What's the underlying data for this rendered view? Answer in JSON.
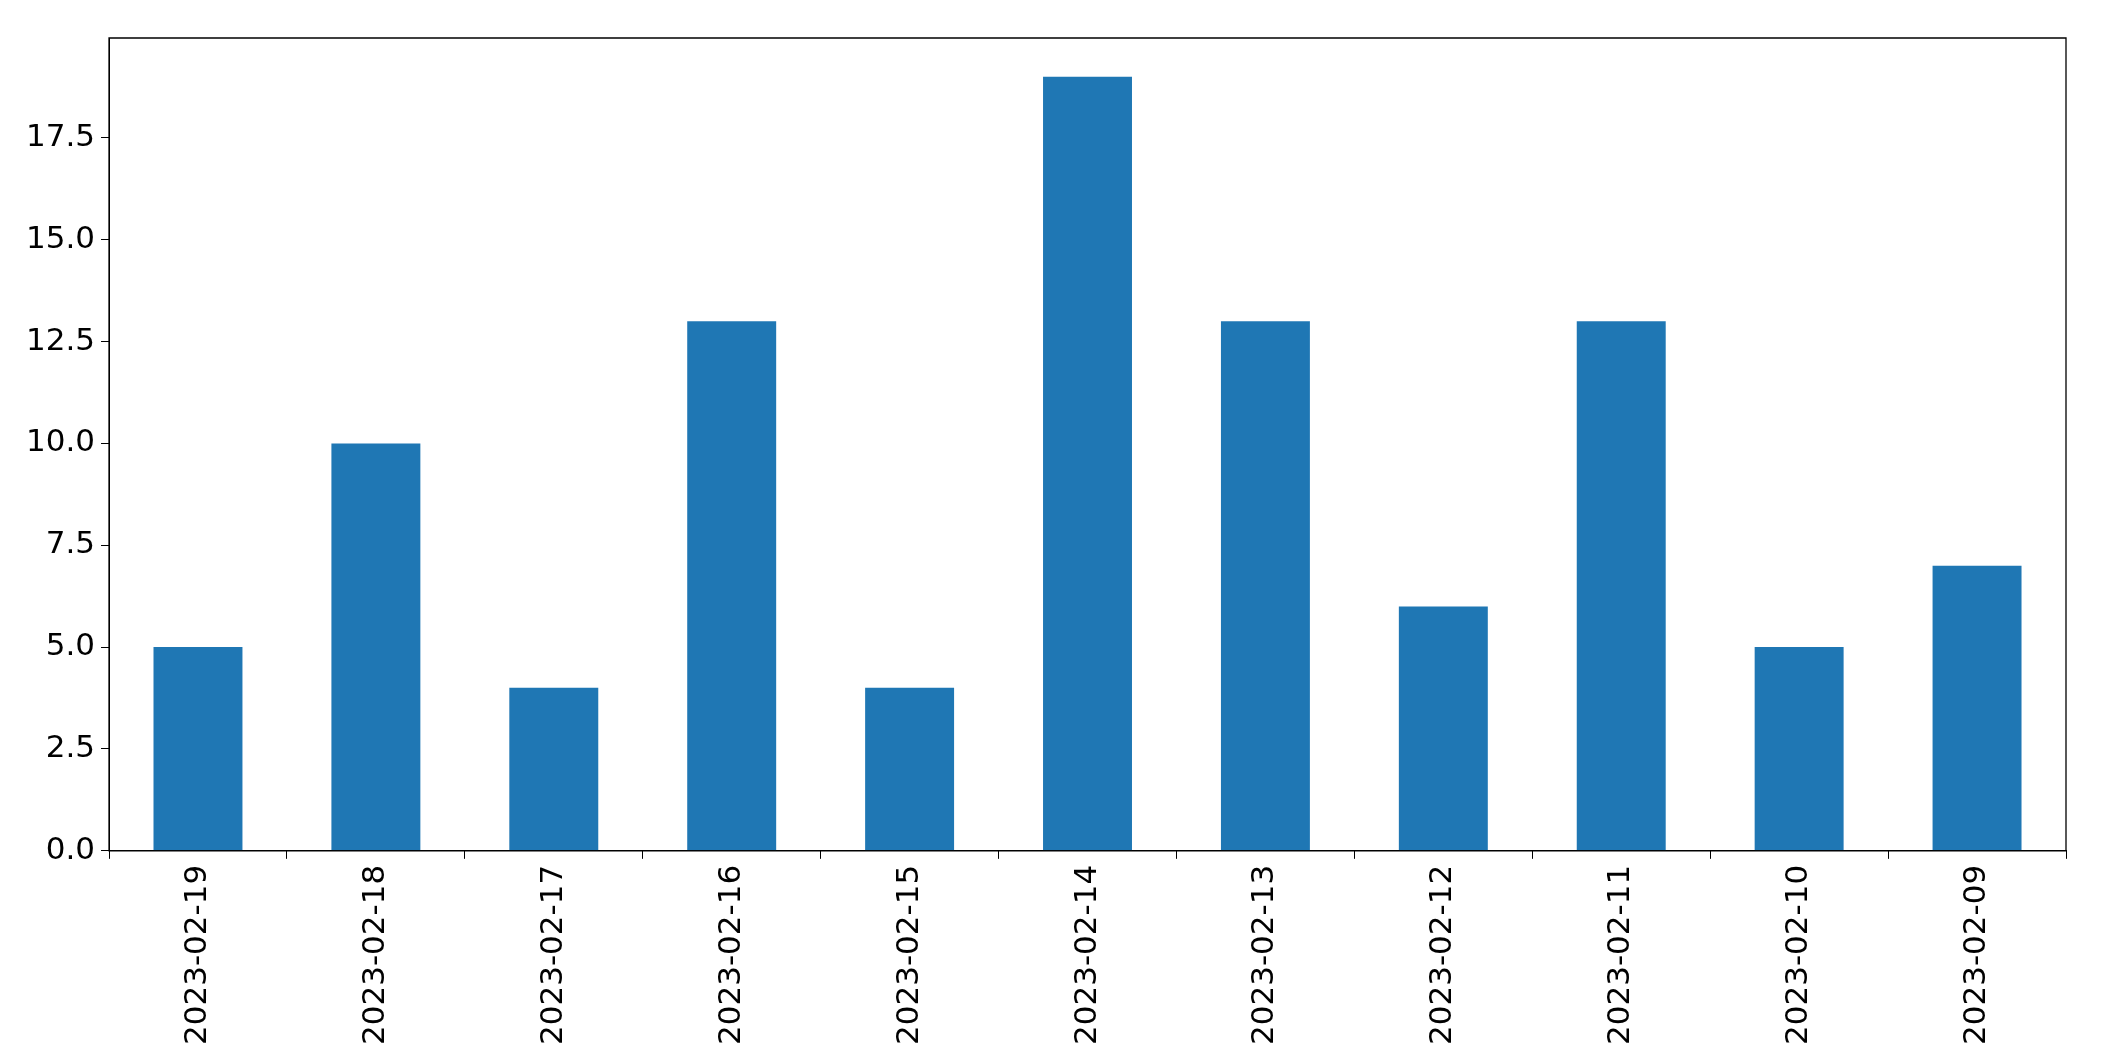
{
  "chart_data": {
    "type": "bar",
    "categories": [
      "2023-02-19",
      "2023-02-18",
      "2023-02-17",
      "2023-02-16",
      "2023-02-15",
      "2023-02-14",
      "2023-02-13",
      "2023-02-12",
      "2023-02-11",
      "2023-02-10",
      "2023-02-09"
    ],
    "values": [
      5,
      10,
      4,
      13,
      4,
      19,
      13,
      6,
      13,
      5,
      7
    ],
    "color": "#1f77b4",
    "ylim": [
      0,
      19.95
    ],
    "yticks": [
      {
        "value": 0,
        "label": "0.0"
      },
      {
        "value": 2.5,
        "label": "2.5"
      },
      {
        "value": 5,
        "label": "5.0"
      },
      {
        "value": 7.5,
        "label": "7.5"
      },
      {
        "value": 10,
        "label": "10.0"
      },
      {
        "value": 12.5,
        "label": "12.5"
      },
      {
        "value": 15,
        "label": "15.0"
      },
      {
        "value": 17.5,
        "label": "17.5"
      }
    ],
    "grid": false,
    "legend": false
  }
}
